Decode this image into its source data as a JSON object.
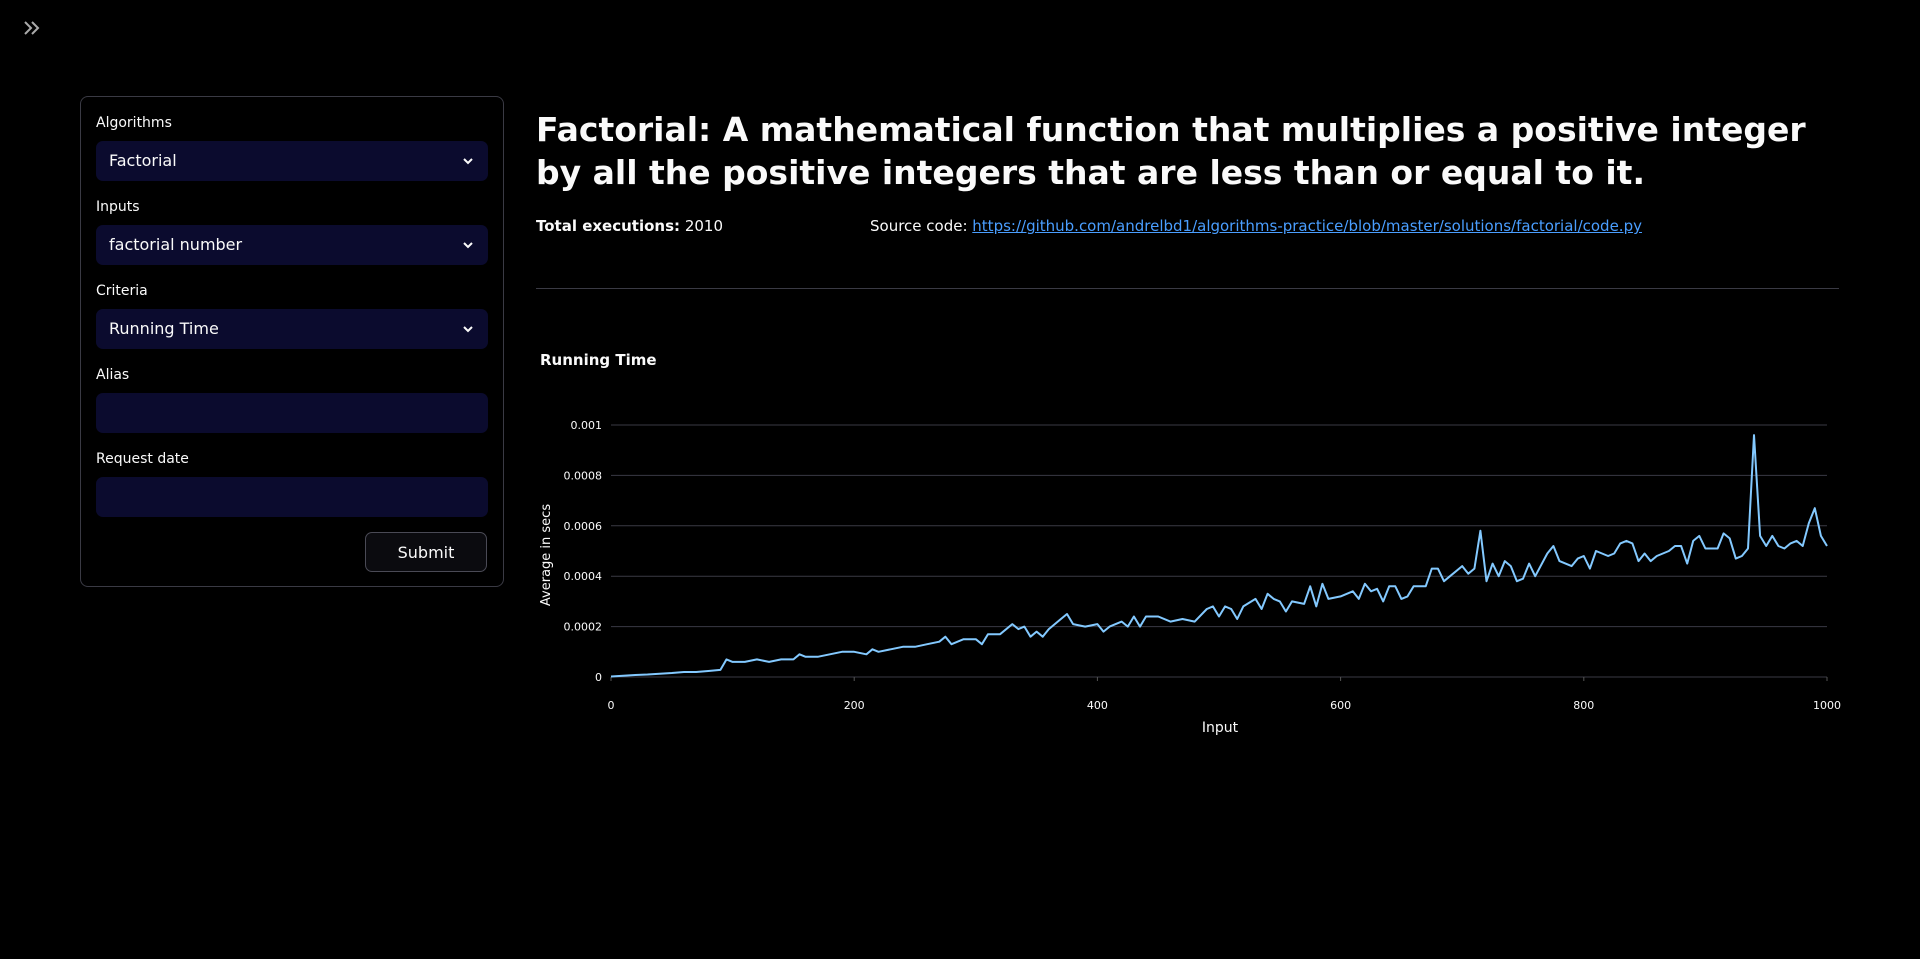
{
  "sidebar": {
    "fields": [
      {
        "label": "Algorithms",
        "value": "Factorial"
      },
      {
        "label": "Inputs",
        "value": "factorial number"
      },
      {
        "label": "Criteria",
        "value": "Running Time"
      },
      {
        "label": "Alias"
      },
      {
        "label": "Request date"
      }
    ],
    "submit": "Submit"
  },
  "header": {
    "title": "Factorial: A mathematical function that multiplies a positive integer by all the positive integers that are less than or equal to it.",
    "executions_label": "Total executions:",
    "executions": 2010,
    "source_label": "Source code:",
    "source_url": "https://github.com/andrelbd1/algorithms-practice/blob/master/solutions/factorial/code.py"
  },
  "chart_data": {
    "type": "line",
    "title": "Running Time",
    "x_label": "Input",
    "y_label": "Average in secs",
    "color": "#83c9ff",
    "grid": true,
    "xlim": [
      0,
      1000
    ],
    "ylim": [
      0,
      0.001
    ],
    "xticks": [
      0,
      200,
      400,
      600,
      800,
      1000
    ],
    "yticks": [
      0,
      0.0002,
      0.0004,
      0.0006,
      0.0008,
      0.001
    ],
    "x": [
      0,
      10,
      20,
      30,
      40,
      50,
      60,
      70,
      80,
      90,
      95,
      100,
      110,
      120,
      130,
      140,
      150,
      155,
      160,
      170,
      180,
      190,
      200,
      210,
      215,
      220,
      230,
      240,
      250,
      260,
      270,
      275,
      280,
      290,
      300,
      305,
      310,
      320,
      330,
      335,
      340,
      345,
      350,
      355,
      360,
      370,
      375,
      380,
      390,
      400,
      405,
      410,
      420,
      425,
      430,
      435,
      440,
      450,
      460,
      470,
      480,
      490,
      495,
      500,
      505,
      510,
      515,
      520,
      530,
      535,
      540,
      545,
      550,
      555,
      560,
      570,
      575,
      580,
      585,
      590,
      600,
      610,
      615,
      620,
      625,
      630,
      635,
      640,
      645,
      650,
      655,
      660,
      670,
      675,
      680,
      685,
      690,
      700,
      705,
      710,
      715,
      720,
      725,
      730,
      735,
      740,
      745,
      750,
      755,
      760,
      770,
      775,
      780,
      790,
      795,
      800,
      805,
      810,
      820,
      825,
      830,
      835,
      840,
      845,
      850,
      855,
      860,
      870,
      875,
      880,
      885,
      890,
      895,
      900,
      910,
      915,
      920,
      925,
      930,
      935,
      940,
      945,
      950,
      955,
      960,
      965,
      970,
      975,
      980,
      985,
      990,
      995,
      1000
    ],
    "values": [
      2e-06,
      5e-06,
      8e-06,
      1e-05,
      1.3e-05,
      1.6e-05,
      2e-05,
      2e-05,
      2.4e-05,
      2.8e-05,
      7e-05,
      6e-05,
      6e-05,
      7e-05,
      6e-05,
      7e-05,
      7e-05,
      9e-05,
      8e-05,
      8e-05,
      9e-05,
      0.0001,
      0.0001,
      9e-05,
      0.00011,
      0.0001,
      0.00011,
      0.00012,
      0.00012,
      0.00013,
      0.00014,
      0.00016,
      0.00013,
      0.00015,
      0.00015,
      0.00013,
      0.00017,
      0.00017,
      0.00021,
      0.00019,
      0.0002,
      0.00016,
      0.00018,
      0.00016,
      0.00019,
      0.00023,
      0.00025,
      0.00021,
      0.0002,
      0.00021,
      0.00018,
      0.0002,
      0.00022,
      0.0002,
      0.00024,
      0.0002,
      0.00024,
      0.00024,
      0.00022,
      0.00023,
      0.00022,
      0.00027,
      0.00028,
      0.00024,
      0.00028,
      0.00027,
      0.00023,
      0.00028,
      0.00031,
      0.00027,
      0.00033,
      0.00031,
      0.0003,
      0.00026,
      0.0003,
      0.00029,
      0.00036,
      0.00028,
      0.00037,
      0.00031,
      0.00032,
      0.00034,
      0.00031,
      0.00037,
      0.00034,
      0.00035,
      0.0003,
      0.00036,
      0.00036,
      0.00031,
      0.00032,
      0.00036,
      0.00036,
      0.00043,
      0.00043,
      0.00038,
      0.0004,
      0.00044,
      0.00041,
      0.00043,
      0.00058,
      0.00038,
      0.00045,
      0.0004,
      0.00046,
      0.00044,
      0.00038,
      0.00039,
      0.00045,
      0.0004,
      0.00049,
      0.00052,
      0.00046,
      0.00044,
      0.00047,
      0.00048,
      0.00043,
      0.0005,
      0.00048,
      0.00049,
      0.00053,
      0.00054,
      0.00053,
      0.00046,
      0.00049,
      0.00046,
      0.00048,
      0.0005,
      0.00052,
      0.00052,
      0.00045,
      0.00054,
      0.00056,
      0.00051,
      0.00051,
      0.00057,
      0.00055,
      0.00047,
      0.00048,
      0.00051,
      0.00096,
      0.00056,
      0.00052,
      0.00056,
      0.00052,
      0.00051,
      0.00053,
      0.00054,
      0.00052,
      0.00061,
      0.00067,
      0.00056,
      0.00052
    ]
  }
}
